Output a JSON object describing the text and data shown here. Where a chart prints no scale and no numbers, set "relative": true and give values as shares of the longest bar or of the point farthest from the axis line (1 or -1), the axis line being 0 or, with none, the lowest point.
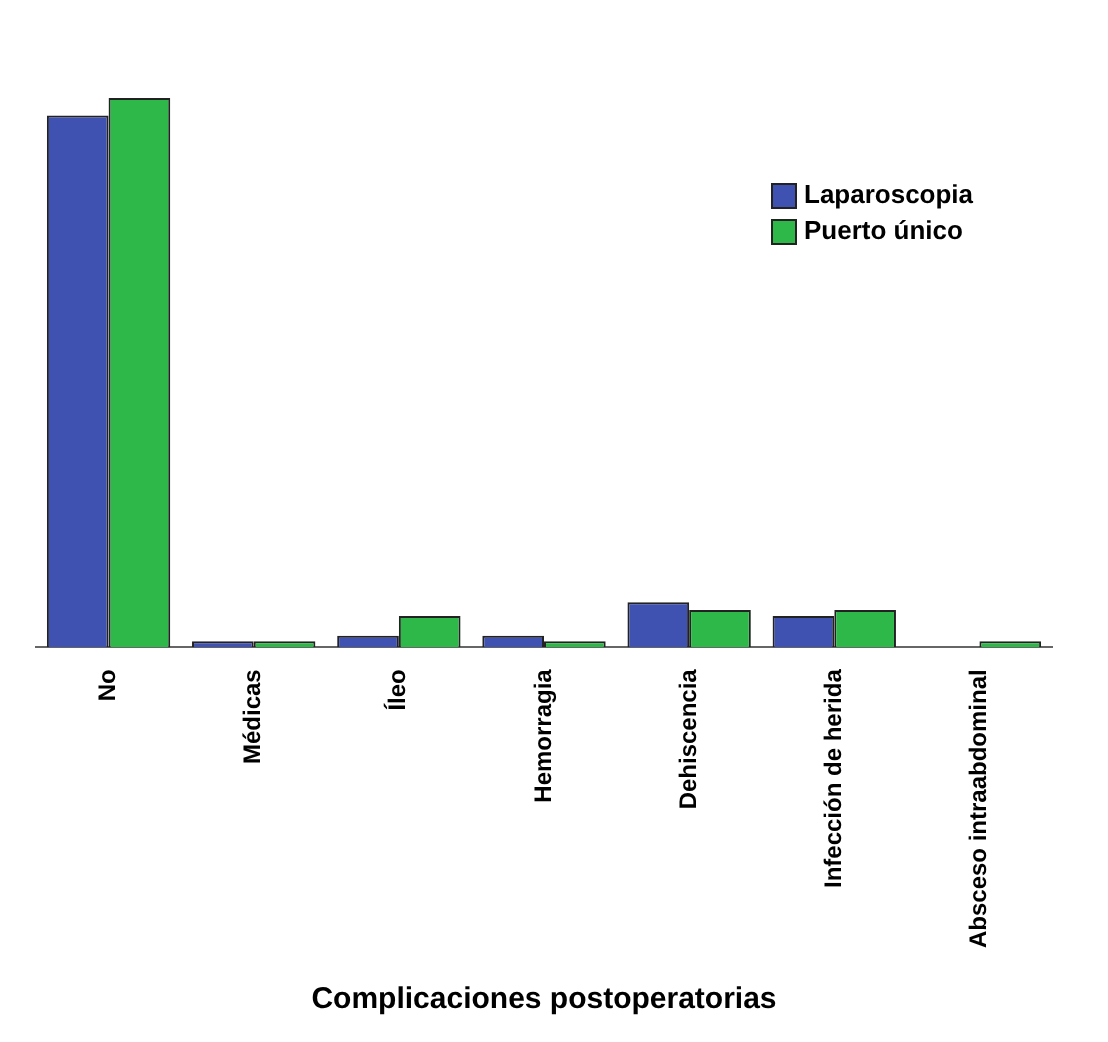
{
  "chart_data": {
    "type": "bar",
    "relative": true,
    "xlabel": "Complicaciones postoperatorias",
    "categories": [
      "No",
      "Médicas",
      "Íleo",
      "Hemorragia",
      "Dehiscencia",
      "Infección de herida",
      "Absceso intraabdominal"
    ],
    "series": [
      {
        "name": "Laparoscopia",
        "color": "#3f51b1",
        "values": [
          0.968,
          0.011,
          0.021,
          0.021,
          0.082,
          0.057,
          0
        ]
      },
      {
        "name": "Puerto único",
        "color": "#2fb84a",
        "values": [
          1,
          0.011,
          0.057,
          0.011,
          0.068,
          0.068,
          0.011
        ]
      }
    ],
    "legend": "top right",
    "grid": false
  }
}
